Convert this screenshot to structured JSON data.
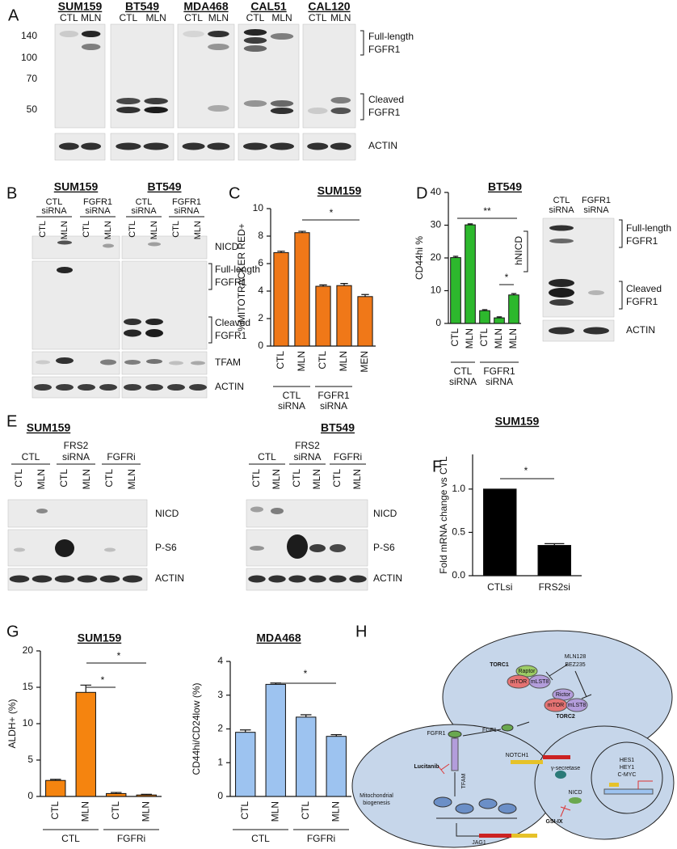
{
  "figure": {
    "panel_letters": [
      "A",
      "B",
      "C",
      "D",
      "E",
      "F",
      "G",
      "H"
    ],
    "blot_a": {
      "cell_lines": [
        "SUM159",
        "BT549",
        "MDA468",
        "CAL51",
        "CAL120"
      ],
      "lanes": [
        "CTL",
        "MLN"
      ],
      "markers": [
        140,
        100,
        70,
        50
      ],
      "full_length": [
        "Full-length",
        "FGFR1"
      ],
      "cleaved": [
        "Cleaved",
        "FGFR1"
      ],
      "loading": "ACTIN"
    },
    "blot_b": {
      "cell_lines": [
        "SUM159",
        "BT549"
      ],
      "groups": [
        [
          "CTL",
          "siRNA"
        ],
        [
          "FGFR1",
          "siRNA"
        ]
      ],
      "lanes": [
        "CTL",
        "MLN"
      ],
      "nicd": "NICD",
      "full_length": [
        "Full-length",
        "FGFR1"
      ],
      "cleaved": [
        "Cleaved",
        "FGFR1"
      ],
      "tfam": "TFAM",
      "loading": "ACTIN"
    },
    "blot_d": {
      "groups": [
        [
          "CTL",
          "siRNA"
        ],
        [
          "FGFR1",
          "siRNA"
        ]
      ],
      "full_length": [
        "Full-length",
        "FGFR1"
      ],
      "cleaved": [
        "Cleaved",
        "FGFR1"
      ],
      "loading": "ACTIN"
    },
    "blot_e": {
      "cell_lines": [
        "SUM159",
        "BT549"
      ],
      "groups": [
        [
          "CTL"
        ],
        [
          "FRS2",
          "siRNA"
        ],
        [
          "FGFRi"
        ]
      ],
      "lanes": [
        "CTL",
        "MLN"
      ],
      "nicd": "NICD",
      "ps6": "P-S6",
      "loading": "ACTIN"
    },
    "diagram_h": {
      "torc1": "TORC1",
      "raptor": "Raptor",
      "mtor": "mTOR",
      "mlst8": "mLST8",
      "mln128": "MLN128",
      "bez235": "BEZ235",
      "rictor": "Rictor",
      "torc2": "TORC2",
      "fgf1": "FGF1",
      "fgfr1": "FGFR1",
      "lucitanib": "Lucitanib",
      "tfam": "TFAM",
      "mito": [
        "Mitochondrial",
        "biogenesis"
      ],
      "notch1": "NOTCH1",
      "gamma": "γ-secretase",
      "nicd": "NICD",
      "gsi": "GSI-IX",
      "jag1": "JAG1",
      "targets": [
        "HES1",
        "HEY1",
        "C-MYC"
      ]
    }
  },
  "chart_data": [
    {
      "type": "bar",
      "title": "SUM159",
      "y_label": "%MITOTRACKER RED+",
      "categories": [
        "CTL",
        "MLN",
        "CTL",
        "MLN",
        "MEN"
      ],
      "values": [
        6.8,
        8.25,
        4.35,
        4.4,
        3.6
      ],
      "errors": [
        0.1,
        0.1,
        0.1,
        0.15,
        0.15
      ],
      "color": "#f07818",
      "ylim": [
        0,
        10
      ],
      "yticks": [
        0,
        2,
        4,
        6,
        8,
        10
      ],
      "groups": [
        [
          "CTL",
          "siRNA"
        ],
        [
          "FGFR1",
          "siRNA"
        ]
      ],
      "annotations": [
        "*"
      ],
      "grid": false
    },
    {
      "type": "bar",
      "title": "BT549",
      "y_label": "CD44hi %",
      "categories": [
        "CTL",
        "MLN",
        "CTL",
        "MLN",
        "MLN"
      ],
      "values": [
        20.1,
        30.1,
        3.9,
        1.7,
        8.7
      ],
      "errors": [
        0.4,
        0.3,
        0.3,
        0.3,
        0.4
      ],
      "color": "#2db82d",
      "ylim": [
        0,
        40
      ],
      "yticks": [
        0,
        10,
        20,
        30,
        40
      ],
      "groups": [
        [
          "CTL",
          "siRNA"
        ],
        [
          "FGFR1",
          "siRNA"
        ]
      ],
      "annotations": [
        "**",
        "*",
        "hNICD"
      ],
      "grid": false
    },
    {
      "type": "bar",
      "title": "SUM159",
      "y_label": "Fold  mRNA change vs CTL",
      "categories": [
        "CTLsi",
        "FRS2si"
      ],
      "values": [
        1.0,
        0.35
      ],
      "errors": [
        null,
        0.02
      ],
      "color": "#000000",
      "ylim": [
        0,
        1.4
      ],
      "yticks": [
        {
          "value": 0,
          "label": "0.0"
        },
        0.5,
        {
          "value": 1,
          "label": "1.0"
        }
      ],
      "groups": [],
      "annotations": [
        "*"
      ],
      "grid": false
    },
    {
      "type": "bar",
      "title": "SUM159",
      "y_label": "ALDH+ (%)",
      "categories": [
        "CTL",
        "MLN",
        "CTL",
        "MLN"
      ],
      "values": [
        2.2,
        14.3,
        0.4,
        0.2
      ],
      "errors": [
        0.15,
        1.0,
        0.15,
        0.1
      ],
      "color": "#f5840f",
      "ylim": [
        0,
        20
      ],
      "yticks": [
        0,
        5,
        10,
        15,
        20
      ],
      "groups": [
        [
          "CTL"
        ],
        [
          "FGFRi"
        ]
      ],
      "annotations": [
        "*",
        "*"
      ],
      "grid": false
    },
    {
      "type": "bar",
      "title": "MDA468",
      "y_label": "CD44hi/CD24low (%)",
      "categories": [
        "CTL",
        "MLN",
        "CTL",
        "MLN"
      ],
      "values": [
        1.9,
        3.32,
        2.35,
        1.78
      ],
      "errors": [
        0.07,
        0.04,
        0.07,
        0.05
      ],
      "color": "#9dc3f0",
      "ylim": [
        0,
        4
      ],
      "yticks": [
        0,
        1,
        2,
        3,
        4
      ],
      "groups": [
        [
          "CTL"
        ],
        [
          "FGFRi"
        ]
      ],
      "annotations": [
        "*"
      ],
      "grid": false
    }
  ]
}
